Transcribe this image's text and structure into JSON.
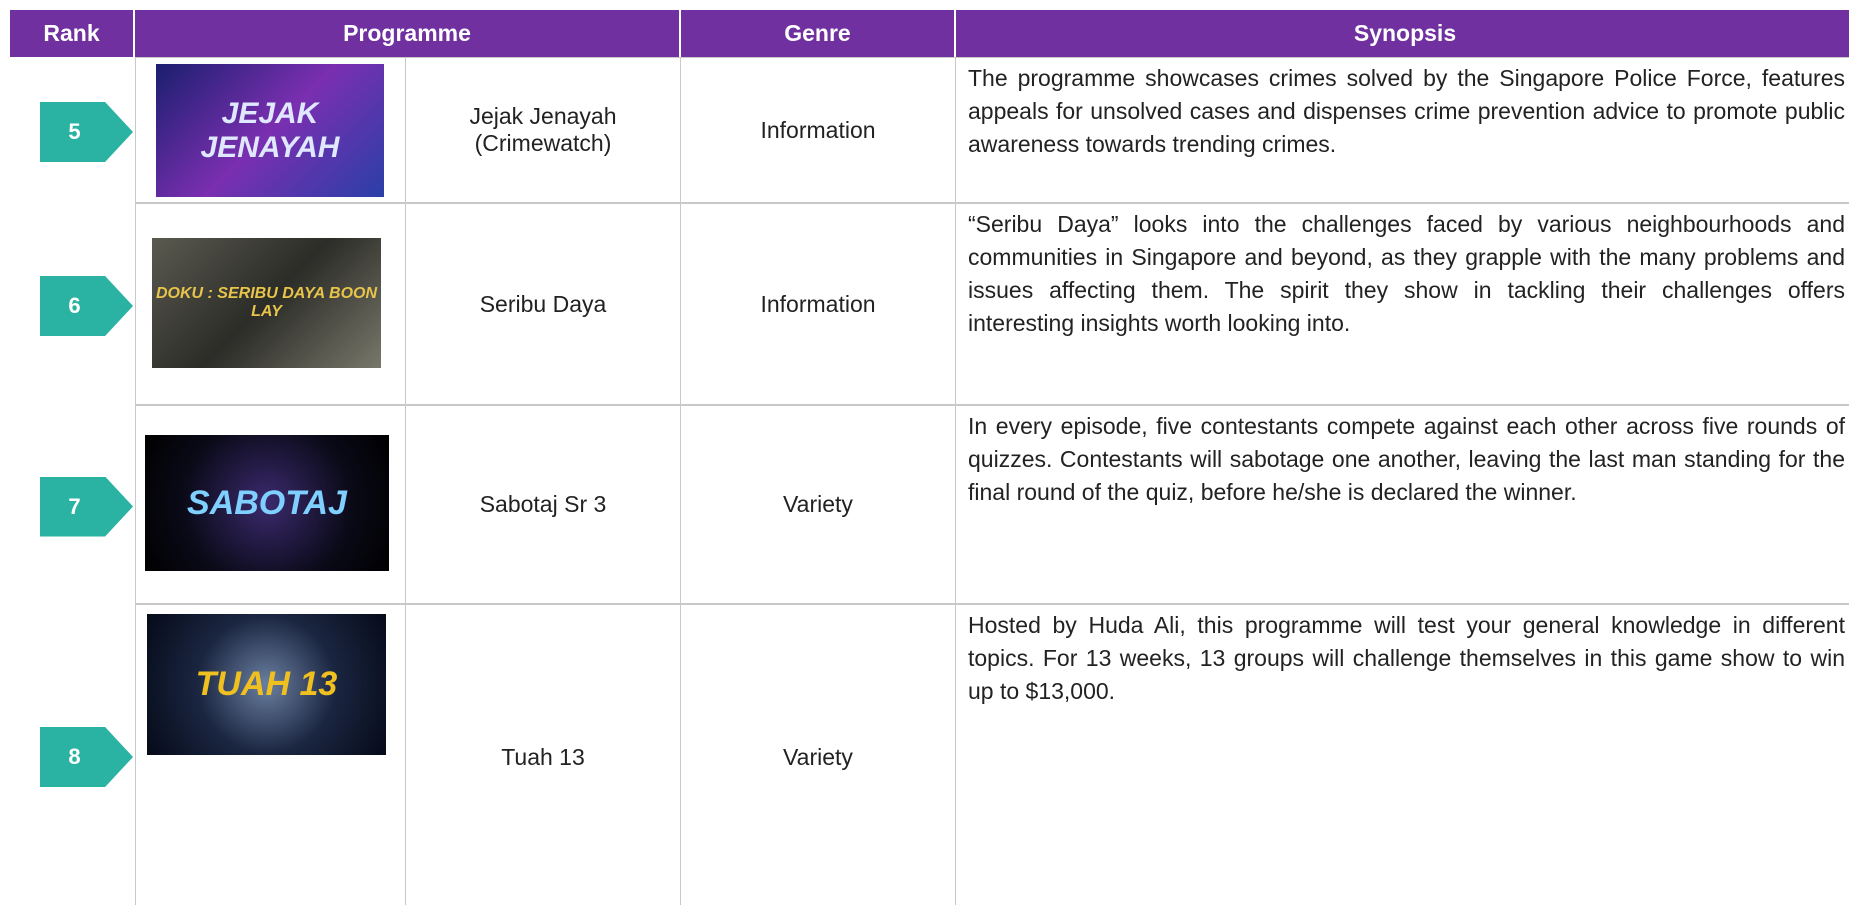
{
  "header": {
    "rank": "Rank",
    "programme": "Programme",
    "genre": "Genre",
    "synopsis": "Synopsis"
  },
  "rows": [
    {
      "rank": "5",
      "image_text": "JEJAK JENAYAH",
      "title": "Jejak Jenayah (Crimewatch)",
      "genre": "Information",
      "synopsis": "The programme showcases crimes solved by the Singapore Police Force, features appeals for unsolved cases and dispenses crime prevention advice to promote public awareness towards trending crimes."
    },
    {
      "rank": "6",
      "image_text": "DOKU : SERIBU DAYA BOON LAY",
      "title": "Seribu Daya",
      "genre": "Information",
      "synopsis": "“Seribu Daya” looks into the challenges faced by various neighbourhoods and communities in Singapore and beyond, as they grapple with the many problems and issues affecting them. The spirit they show in tackling their challenges offers interesting insights worth looking into."
    },
    {
      "rank": "7",
      "image_text": "SABOTAJ",
      "title": "Sabotaj Sr 3",
      "genre": "Variety",
      "synopsis": "In every episode, five contestants compete against each other across five rounds of quizzes. Contestants will sabotage one another, leaving the last man standing for the final round of the quiz, before he/she is declared the winner."
    },
    {
      "rank": "8",
      "image_text": "TUAH 13",
      "title": "Tuah 13",
      "genre": "Variety",
      "synopsis": "Hosted by Huda Ali, this programme will test your general knowledge in different topics. For 13 weeks, 13 groups will challenge themselves in this game show to win up to $13,000."
    }
  ]
}
